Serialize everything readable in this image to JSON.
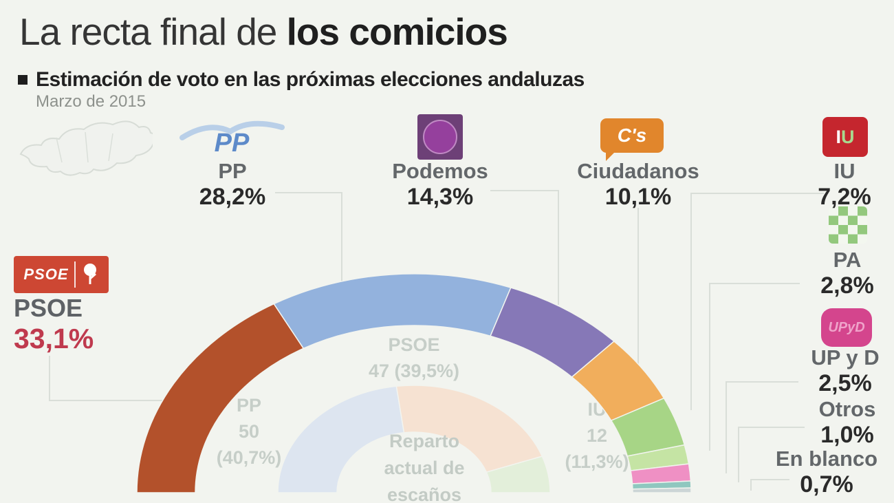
{
  "header": {
    "title_regular": "La recta final de ",
    "title_bold": "los comicios",
    "subtitle": "Estimación de voto en las próximas elecciones andaluzas",
    "date": "Marzo de 2015"
  },
  "logos": {
    "psoe": "PSOE",
    "pp": "PP",
    "cs": "C's",
    "iu": "IU",
    "upyd": "UPyD"
  },
  "chart_data": {
    "type": "half-donut",
    "title": "Estimación de voto en las próximas elecciones andaluzas",
    "subtitle": "Marzo de 2015",
    "legend_position": "around",
    "parties": [
      {
        "name": "PSOE",
        "share": 33.1,
        "share_label": "33,1%",
        "color": "#b3512b",
        "value_color": "#bf3a4e"
      },
      {
        "name": "PP",
        "share": 28.2,
        "share_label": "28,2%",
        "color": "#93b2dd",
        "value_color": "#2a2a2a"
      },
      {
        "name": "Podemos",
        "share": 14.3,
        "share_label": "14,3%",
        "color": "#8678b7",
        "value_color": "#2a2a2a"
      },
      {
        "name": "Ciudadanos",
        "share": 10.1,
        "share_label": "10,1%",
        "color": "#f1ae5c",
        "value_color": "#2a2a2a"
      },
      {
        "name": "IU",
        "share": 7.2,
        "share_label": "7,2%",
        "color": "#a7d586",
        "value_color": "#2a2a2a"
      },
      {
        "name": "PA",
        "share": 2.8,
        "share_label": "2,8%",
        "color": "#c5e4a4",
        "value_color": "#2a2a2a"
      },
      {
        "name": "UP y D",
        "share": 2.5,
        "share_label": "2,5%",
        "color": "#ef90c4",
        "value_color": "#2a2a2a"
      },
      {
        "name": "Otros",
        "share": 1.0,
        "share_label": "1,0%",
        "color": "#8fc7bf",
        "value_color": "#2a2a2a"
      },
      {
        "name": "En blanco",
        "share": 0.7,
        "share_label": "0,7%",
        "color": "#ccd5d6",
        "value_color": "#2a2a2a"
      }
    ],
    "inner_ring": {
      "center_lines": [
        "Reparto",
        "actual de",
        "escaños"
      ],
      "segments": [
        {
          "name": "PP",
          "seats": 50,
          "label_lines": [
            "PP",
            "50",
            "(40,7%)"
          ],
          "color": "#dde5f0"
        },
        {
          "name": "PSOE",
          "seats": 47,
          "label_lines": [
            "PSOE",
            "47 (39,5%)"
          ],
          "color": "#f6e2d2"
        },
        {
          "name": "IU",
          "seats": 12,
          "label_lines": [
            "IU",
            "12",
            "(11,3%)"
          ],
          "color": "#e3efda"
        }
      ]
    }
  }
}
